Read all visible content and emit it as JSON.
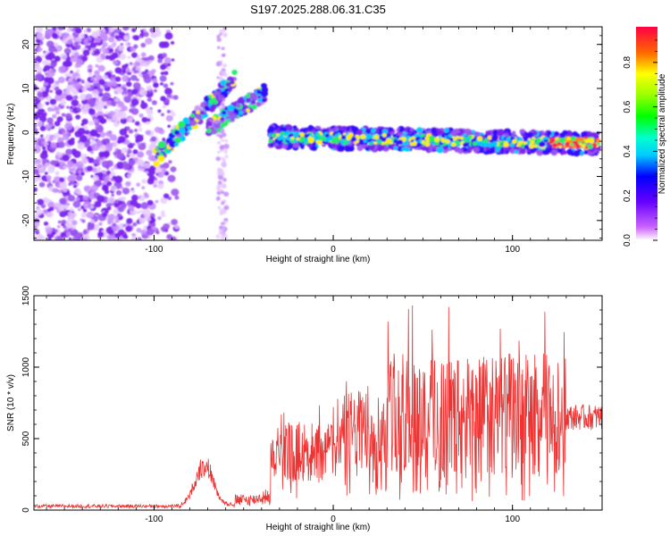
{
  "title": "S197.2025.288.06.31.C35",
  "chart_data": [
    {
      "type": "heatmap",
      "xlabel": "Height of straight line (km)",
      "ylabel": "Frequency (Hz)",
      "xlim": [
        -167,
        150
      ],
      "ylim": [
        -24.5,
        24
      ],
      "xticks": [
        -100,
        0,
        100
      ],
      "xtick_labels": [
        "-100",
        "0",
        "100"
      ],
      "yticks": [
        -20,
        -10,
        0,
        10,
        20
      ],
      "ytick_labels": [
        "-20",
        "-10",
        "0",
        "10",
        "20"
      ],
      "colorbar": {
        "label": "Normalized spectral amplitude",
        "range": [
          0,
          0.96
        ],
        "ticks": [
          0.0,
          0.2,
          0.4,
          0.6,
          0.8
        ],
        "tick_labels": [
          "0.0",
          "0.2",
          "0.4",
          "0.6",
          "0.8"
        ]
      },
      "features": {
        "noise_region_x": [
          -167,
          -93
        ],
        "diagonal_ridges": [
          {
            "x": [
              -100,
              -55
            ],
            "y": [
              -6,
              12
            ]
          },
          {
            "x": [
              -70,
              -38
            ],
            "y": [
              1,
              9
            ]
          }
        ],
        "main_ridge": {
          "x": [
            -35,
            148
          ],
          "y_start": -1,
          "y_end": -2.5
        }
      }
    },
    {
      "type": "line",
      "xlabel": "Height of straight line (km)",
      "ylabel": "SNR (10 * v/v)",
      "xlim": [
        -167,
        150
      ],
      "ylim": [
        0,
        1500
      ],
      "xticks": [
        -100,
        0,
        100
      ],
      "xtick_labels": [
        "-100",
        "0",
        "100"
      ],
      "yticks": [
        0,
        500,
        1000,
        1500
      ],
      "ytick_labels": [
        "0",
        "500",
        "1000",
        "1500"
      ],
      "color": "#ee3333",
      "segments": [
        {
          "x": [
            -167,
            -85
          ],
          "baseline": 20,
          "amplitude": 20
        },
        {
          "x": [
            -85,
            -55
          ],
          "peak_x": -72,
          "peak_y": 360
        },
        {
          "x": [
            -55,
            -35
          ],
          "baseline": 40,
          "amplitude": 60
        },
        {
          "x": [
            -35,
            0
          ],
          "baseline": 280,
          "max": 760
        },
        {
          "x": [
            0,
            30
          ],
          "baseline": 380,
          "max": 1000
        },
        {
          "x": [
            30,
            130
          ],
          "baseline": 480,
          "max": 1500
        },
        {
          "x": [
            130,
            150
          ],
          "baseline": 640,
          "max": 760
        }
      ]
    }
  ]
}
